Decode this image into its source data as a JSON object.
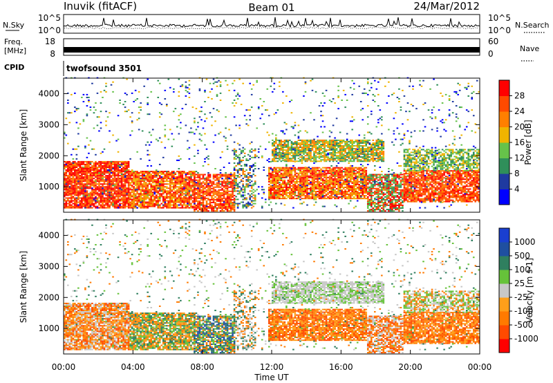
{
  "header": {
    "station": "Inuvik (fitACF)",
    "beam": "Beam 01",
    "date": "24/Mar/2012"
  },
  "noise_panel": {
    "left_label": "N.Sky",
    "right_label": "N.Search",
    "left_ticks": [
      "10^5",
      "10^0"
    ],
    "right_ticks": [
      "10^5",
      "10^0"
    ]
  },
  "freq_panel": {
    "left_label_top": "Freq.",
    "left_label_unit": "[MHz]",
    "left_ticks": [
      "18",
      "8"
    ],
    "right_label": "Nave",
    "right_ticks": [
      "60",
      "0"
    ]
  },
  "cpid_panel": {
    "label": "CPID",
    "value": "twofsound 3501"
  },
  "colors": {
    "power_scale": [
      "#0000ff",
      "#1f3aa0",
      "#2f8f5a",
      "#66c24a",
      "#f0b400",
      "#ff7f00",
      "#ff4a00",
      "#ff0000"
    ],
    "velocity_scale": [
      "#1a3fd0",
      "#1f4fa0",
      "#2f7f5f",
      "#66c23a",
      "#c8c8c8",
      "#ff9f1a",
      "#ff7a00",
      "#ff4a00",
      "#ff0000"
    ]
  },
  "chart_data": [
    {
      "type": "heatmap",
      "panel": "power",
      "ylabel": "Slant Range [km]",
      "yticks": [
        "1000",
        "2000",
        "3000",
        "4000"
      ],
      "ylim": [
        180,
        4500
      ],
      "colorbar_label": "Power [dB]",
      "colorbar_ticks": [
        "4",
        "8",
        "12",
        "16",
        "20",
        "24",
        "28"
      ],
      "colorbar_range": [
        0,
        30
      ],
      "x_range_hours": [
        0,
        24
      ]
    },
    {
      "type": "heatmap",
      "panel": "velocity",
      "ylabel": "Slant Range [km]",
      "yticks": [
        "1000",
        "2000",
        "3000",
        "4000"
      ],
      "ylim": [
        180,
        4500
      ],
      "colorbar_label": "Velocity [m s-1]",
      "colorbar_ticks": [
        "1000",
        "500",
        "100",
        "25",
        "-25",
        "-100",
        "-500",
        "-1000"
      ],
      "xlabel": "Time UT",
      "xticks": [
        "00:00",
        "04:00",
        "08:00",
        "12:00",
        "16:00",
        "20:00",
        "00:00"
      ],
      "x_range_hours": [
        0,
        24
      ]
    }
  ]
}
